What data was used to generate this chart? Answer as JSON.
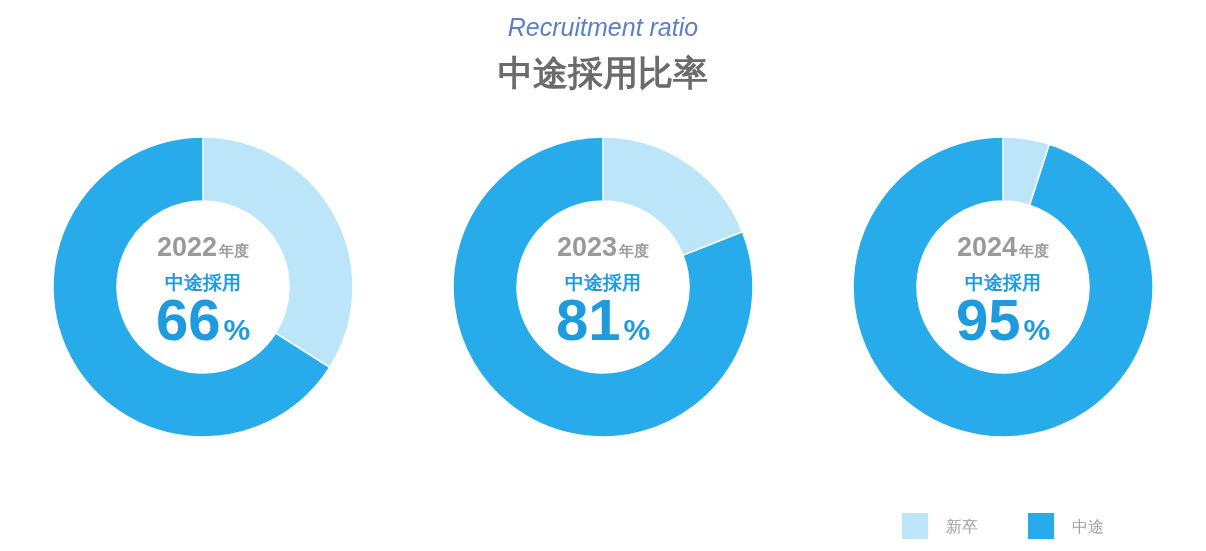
{
  "chart_data": [
    {
      "type": "donut",
      "categories": [
        null,
        null
      ],
      "values": [
        34,
        66
      ],
      "colors": [
        "#bde5f9",
        "#28abeb"
      ],
      "annotations": [
        "2022年度",
        "中途採用"
      ],
      "value_labels": [
        null,
        "66%"
      ]
    },
    {
      "type": "donut",
      "title": "中途採用比率",
      "subtitle": "Recruitment ratio",
      "categories": [
        null,
        null
      ],
      "values": [
        19,
        81
      ],
      "colors": [
        "#bde5f9",
        "#28abeb"
      ],
      "annotations": [
        "2023年度",
        "中途採用"
      ],
      "value_labels": [
        null,
        "81%"
      ]
    },
    {
      "type": "donut",
      "categories": [
        "新卒",
        "中途"
      ],
      "values": [
        5,
        95
      ],
      "colors": [
        "#bde5f9",
        "#28abeb"
      ],
      "annotations": [
        "2024年度",
        "中途採用"
      ],
      "value_labels": [
        null,
        "95%"
      ],
      "legend": "bottom"
    }
  ]
}
